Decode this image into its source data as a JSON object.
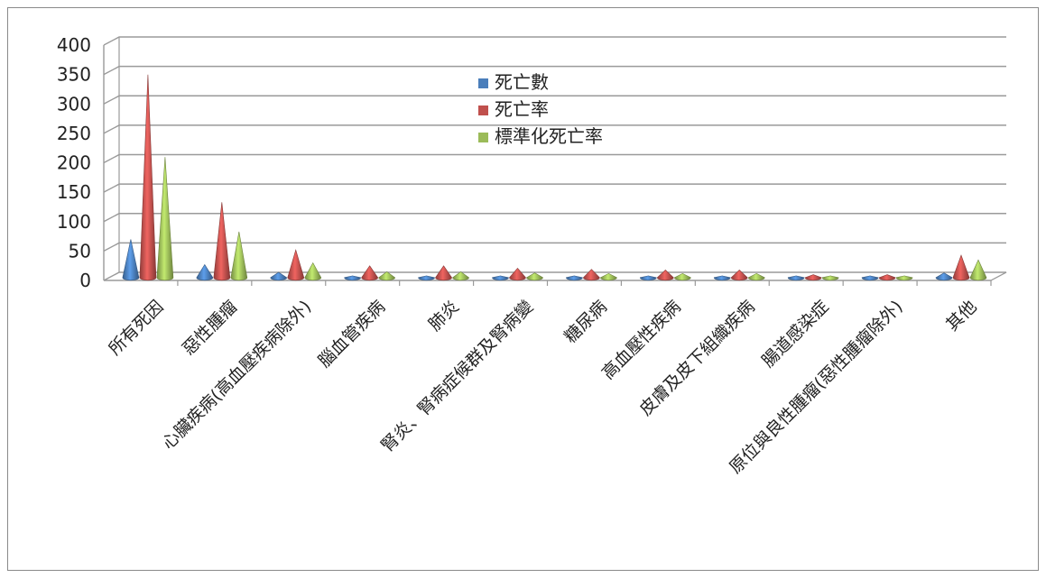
{
  "chart_data": {
    "type": "bar",
    "title": "",
    "xlabel": "",
    "ylabel": "",
    "ylim": [
      0,
      400
    ],
    "yticks": [
      0,
      50,
      100,
      150,
      200,
      250,
      300,
      350,
      400
    ],
    "grid": true,
    "legend_position": "top-center",
    "categories": [
      "所有死因",
      "惡性腫瘤",
      "心臟疾病(高血壓疾病除外)",
      "腦血管疾病",
      "肺炎",
      "腎炎、腎病症候群及腎病變",
      "糖尿病",
      "高血壓性疾病",
      "皮膚及皮下組織疾病",
      "腸道感染症",
      "原位與良性腫瘤(惡性腫瘤除外)",
      "其他"
    ],
    "series": [
      {
        "name": "死亡數",
        "color": "#4a7ebb",
        "values": [
          65,
          22,
          9,
          3,
          3,
          3,
          3,
          3,
          3,
          3,
          3,
          8
        ]
      },
      {
        "name": "死亡率",
        "color": "#c0504d",
        "values": [
          345,
          128,
          47,
          20,
          20,
          16,
          14,
          13,
          13,
          5,
          5,
          38
        ]
      },
      {
        "name": "標準化死亡率",
        "color": "#9bbb59",
        "values": [
          205,
          78,
          25,
          10,
          10,
          8,
          7,
          7,
          7,
          3,
          3,
          30
        ]
      }
    ]
  }
}
